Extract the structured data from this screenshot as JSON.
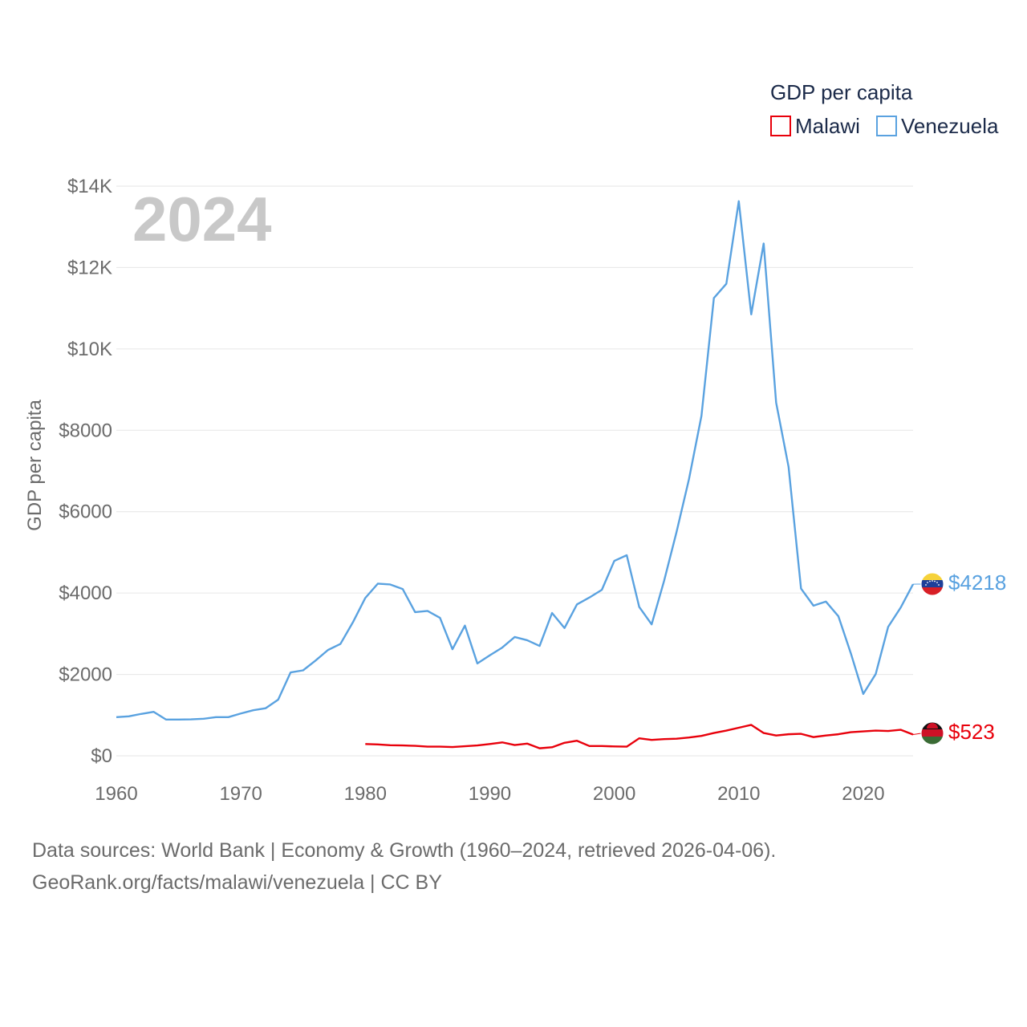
{
  "chart_data": {
    "type": "line",
    "year_label": "2024",
    "ylabel": "GDP per capita",
    "legend_title": "GDP per capita",
    "xlim": [
      1960,
      2024
    ],
    "ylim": [
      0,
      14000
    ],
    "x_ticks": [
      1960,
      1970,
      1980,
      1990,
      2000,
      2010,
      2020
    ],
    "y_ticks": [
      {
        "value": 0,
        "label": "$0"
      },
      {
        "value": 2000,
        "label": "$2000"
      },
      {
        "value": 4000,
        "label": "$4000"
      },
      {
        "value": 6000,
        "label": "$6000"
      },
      {
        "value": 8000,
        "label": "$8000"
      },
      {
        "value": 10000,
        "label": "$10K"
      },
      {
        "value": 12000,
        "label": "$12K"
      },
      {
        "value": 14000,
        "label": "$14K"
      }
    ],
    "series": [
      {
        "name": "Malawi",
        "color": "#e8000b",
        "end_label": "$523",
        "flag_icon": "malawi-flag-icon",
        "x": [
          1980,
          1981,
          1982,
          1983,
          1984,
          1985,
          1986,
          1987,
          1988,
          1989,
          1990,
          1991,
          1992,
          1993,
          1994,
          1995,
          1996,
          1997,
          1998,
          1999,
          2000,
          2001,
          2002,
          2003,
          2004,
          2005,
          2006,
          2007,
          2008,
          2009,
          2010,
          2011,
          2012,
          2013,
          2014,
          2015,
          2016,
          2017,
          2018,
          2019,
          2020,
          2021,
          2022,
          2023,
          2024
        ],
        "values": [
          290,
          280,
          260,
          255,
          245,
          225,
          225,
          215,
          235,
          255,
          290,
          330,
          265,
          300,
          185,
          210,
          320,
          370,
          240,
          240,
          230,
          225,
          430,
          390,
          410,
          420,
          450,
          490,
          560,
          620,
          690,
          760,
          560,
          500,
          530,
          540,
          460,
          500,
          530,
          580,
          600,
          620,
          610,
          640,
          523
        ]
      },
      {
        "name": "Venezuela",
        "color": "#5aa2e0",
        "end_label": "$4218",
        "flag_icon": "venezuela-flag-icon",
        "x": [
          1960,
          1961,
          1962,
          1963,
          1964,
          1965,
          1966,
          1967,
          1968,
          1969,
          1970,
          1971,
          1972,
          1973,
          1974,
          1975,
          1976,
          1977,
          1978,
          1979,
          1980,
          1981,
          1982,
          1983,
          1984,
          1985,
          1986,
          1987,
          1988,
          1989,
          1990,
          1991,
          1992,
          1993,
          1994,
          1995,
          1996,
          1997,
          1998,
          1999,
          2000,
          2001,
          2002,
          2003,
          2004,
          2005,
          2006,
          2007,
          2008,
          2009,
          2010,
          2011,
          2012,
          2013,
          2014,
          2015,
          2016,
          2017,
          2018,
          2019,
          2020,
          2021,
          2022,
          2023,
          2024
        ],
        "values": [
          950,
          970,
          1030,
          1080,
          890,
          890,
          895,
          910,
          950,
          950,
          1040,
          1120,
          1170,
          1380,
          2050,
          2100,
          2340,
          2600,
          2750,
          3280,
          3880,
          4230,
          4210,
          4100,
          3530,
          3560,
          3390,
          2620,
          3200,
          2270,
          2470,
          2660,
          2920,
          2840,
          2700,
          3510,
          3140,
          3720,
          3890,
          4080,
          4790,
          4930,
          3660,
          3230,
          4300,
          5500,
          6800,
          8350,
          11250,
          11600,
          13630,
          10850,
          12590,
          8680,
          7100,
          4110,
          3690,
          3790,
          3430,
          2520,
          1520,
          2010,
          3170,
          3640,
          4218
        ]
      }
    ]
  },
  "footer": {
    "line1": "Data sources: World Bank | Economy & Growth (1960–2024, retrieved 2026-04-06).",
    "line2": "GeoRank.org/facts/malawi/venezuela | CC BY"
  }
}
